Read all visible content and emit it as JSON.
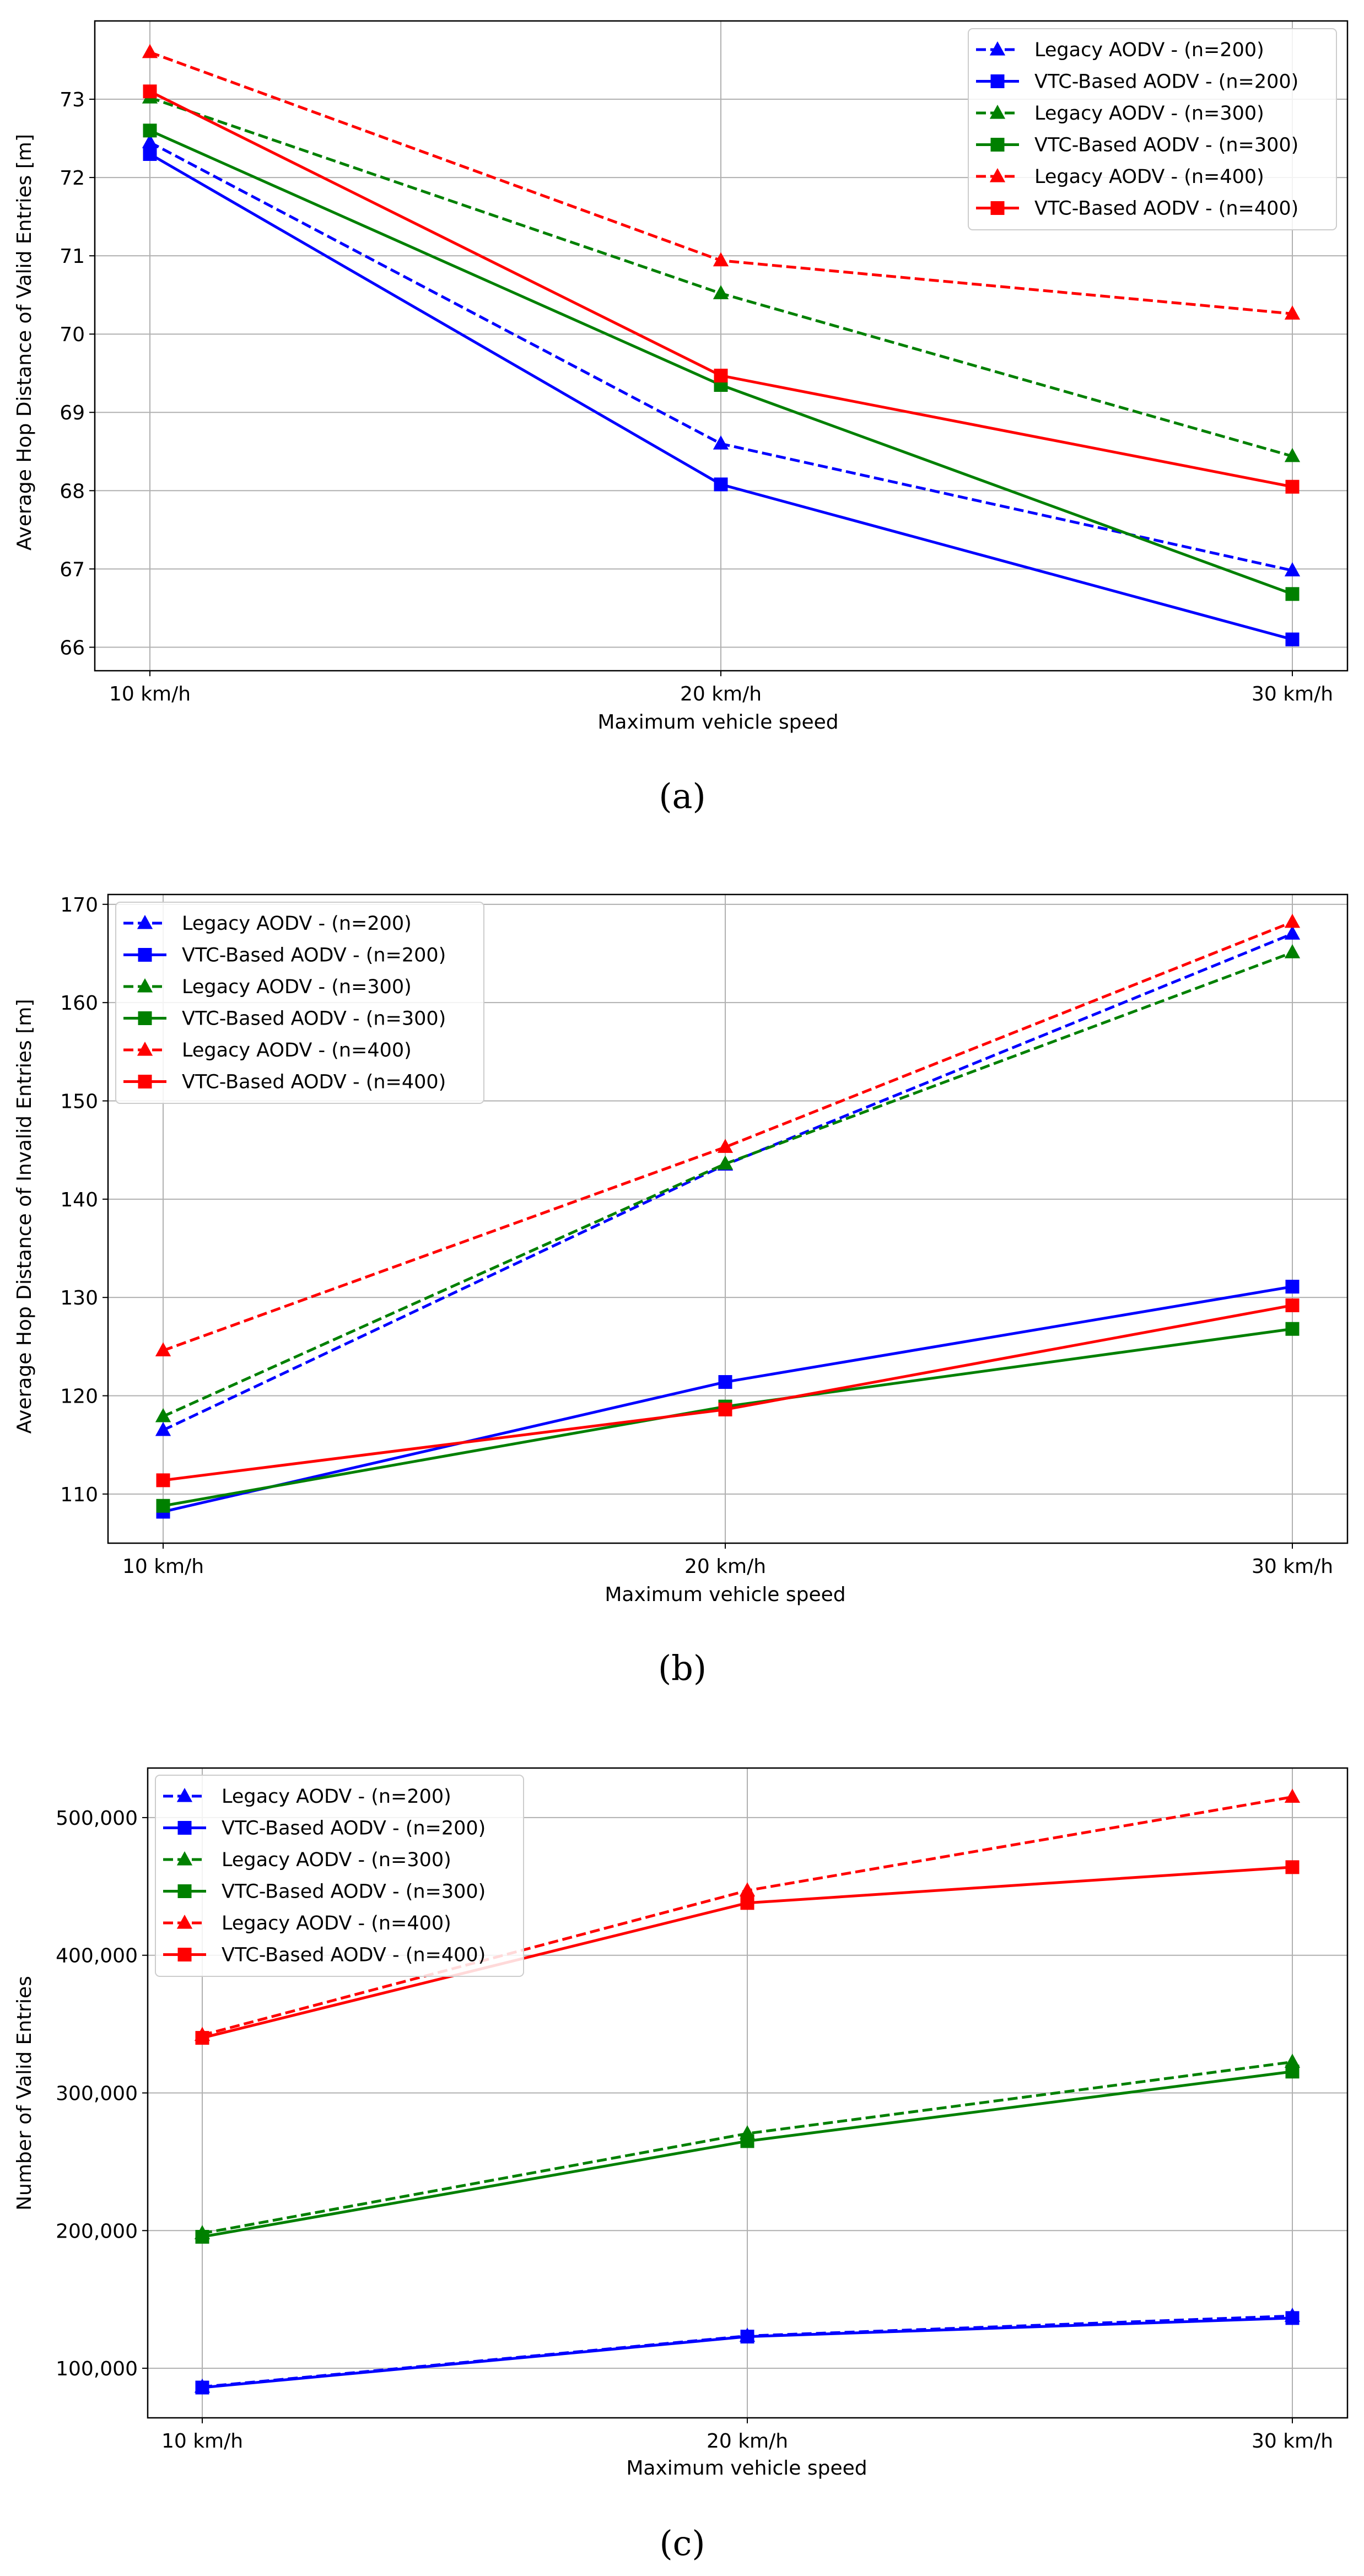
{
  "captions": [
    "(a)",
    "(b)",
    "(c)"
  ],
  "chart_data": [
    {
      "type": "line",
      "panel": "a",
      "xlabel": "Maximum vehicle speed",
      "ylabel": "Average Hop Distance of Valid Entries [m]",
      "categories": [
        "10 km/h",
        "20 km/h",
        "30 km/h"
      ],
      "ylim": [
        65.7,
        74.0
      ],
      "yticks": [
        66,
        67,
        68,
        69,
        70,
        71,
        72,
        73
      ],
      "ytick_labels": [
        "66",
        "67",
        "68",
        "69",
        "70",
        "71",
        "72",
        "73"
      ],
      "grid": true,
      "legend_position": "top-right",
      "series": [
        {
          "name": "Legacy AODV - (n=200)",
          "color": "#0000ff",
          "style": "dashed",
          "marker": "triangle",
          "values": [
            72.45,
            68.6,
            66.98
          ]
        },
        {
          "name": "VTC-Based AODV - (n=200)",
          "color": "#0000ff",
          "style": "solid",
          "marker": "square",
          "values": [
            72.3,
            68.08,
            66.1
          ]
        },
        {
          "name": "Legacy AODV - (n=300)",
          "color": "#008000",
          "style": "dashed",
          "marker": "triangle",
          "values": [
            73.02,
            70.52,
            68.44
          ]
        },
        {
          "name": "VTC-Based AODV - (n=300)",
          "color": "#008000",
          "style": "solid",
          "marker": "square",
          "values": [
            72.6,
            69.35,
            66.68
          ]
        },
        {
          "name": "Legacy AODV - (n=400)",
          "color": "#ff0000",
          "style": "dashed",
          "marker": "triangle",
          "values": [
            73.6,
            70.94,
            70.26
          ]
        },
        {
          "name": "VTC-Based AODV - (n=400)",
          "color": "#ff0000",
          "style": "solid",
          "marker": "square",
          "values": [
            73.1,
            69.47,
            68.05
          ]
        }
      ]
    },
    {
      "type": "line",
      "panel": "b",
      "xlabel": "Maximum vehicle speed",
      "ylabel": "Average Hop Distance of Invalid Entries [m]",
      "categories": [
        "10 km/h",
        "20 km/h",
        "30 km/h"
      ],
      "ylim": [
        105.0,
        171.0
      ],
      "yticks": [
        110,
        120,
        130,
        140,
        150,
        160,
        170
      ],
      "ytick_labels": [
        "110",
        "120",
        "130",
        "140",
        "150",
        "160",
        "170"
      ],
      "grid": true,
      "legend_position": "top-left",
      "series": [
        {
          "name": "Legacy AODV - (n=200)",
          "color": "#0000ff",
          "style": "dashed",
          "marker": "triangle",
          "values": [
            116.5,
            143.5,
            167.0
          ]
        },
        {
          "name": "VTC-Based AODV - (n=200)",
          "color": "#0000ff",
          "style": "solid",
          "marker": "square",
          "values": [
            108.2,
            121.4,
            131.1
          ]
        },
        {
          "name": "Legacy AODV - (n=300)",
          "color": "#008000",
          "style": "dashed",
          "marker": "triangle",
          "values": [
            117.9,
            143.6,
            165.1
          ]
        },
        {
          "name": "VTC-Based AODV - (n=300)",
          "color": "#008000",
          "style": "solid",
          "marker": "square",
          "values": [
            108.8,
            118.9,
            126.8
          ]
        },
        {
          "name": "Legacy AODV - (n=400)",
          "color": "#ff0000",
          "style": "dashed",
          "marker": "triangle",
          "values": [
            124.6,
            145.3,
            168.2
          ]
        },
        {
          "name": "VTC-Based AODV - (n=400)",
          "color": "#ff0000",
          "style": "solid",
          "marker": "square",
          "values": [
            111.4,
            118.6,
            129.2
          ]
        }
      ]
    },
    {
      "type": "line",
      "panel": "c",
      "xlabel": "Maximum vehicle speed",
      "ylabel": "Number of Valid Entries",
      "categories": [
        "10 km/h",
        "20 km/h",
        "30 km/h"
      ],
      "ylim": [
        64000,
        536000
      ],
      "yticks": [
        100000,
        200000,
        300000,
        400000,
        500000
      ],
      "ytick_labels": [
        "100,000",
        "200,000",
        "300,000",
        "400,000",
        "500,000"
      ],
      "grid": true,
      "legend_position": "top-left",
      "series": [
        {
          "name": "Legacy AODV - (n=200)",
          "color": "#0000ff",
          "style": "dashed",
          "marker": "triangle",
          "values": [
            86500,
            123500,
            138000
          ]
        },
        {
          "name": "VTC-Based AODV - (n=200)",
          "color": "#0000ff",
          "style": "solid",
          "marker": "square",
          "values": [
            86000,
            123000,
            136500
          ]
        },
        {
          "name": "Legacy AODV - (n=300)",
          "color": "#008000",
          "style": "dashed",
          "marker": "triangle",
          "values": [
            198000,
            270500,
            322500
          ]
        },
        {
          "name": "VTC-Based AODV - (n=300)",
          "color": "#008000",
          "style": "solid",
          "marker": "square",
          "values": [
            195500,
            265000,
            315500
          ]
        },
        {
          "name": "Legacy AODV - (n=400)",
          "color": "#ff0000",
          "style": "dashed",
          "marker": "triangle",
          "values": [
            342000,
            447000,
            515000
          ]
        },
        {
          "name": "VTC-Based AODV - (n=400)",
          "color": "#ff0000",
          "style": "solid",
          "marker": "square",
          "values": [
            340000,
            438000,
            464000
          ]
        }
      ]
    }
  ]
}
